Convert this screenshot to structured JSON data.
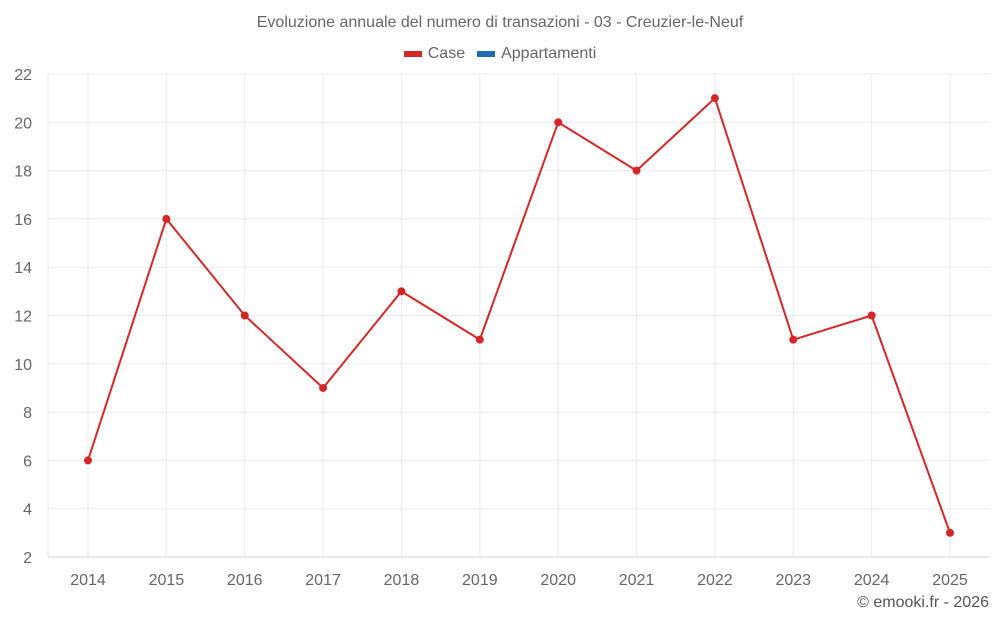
{
  "chart_data": {
    "type": "line",
    "title": "Evoluzione annuale del numero di transazioni - 03 - Creuzier-le-Neuf",
    "xlabel": "",
    "ylabel": "",
    "x": [
      "2014",
      "2015",
      "2016",
      "2017",
      "2018",
      "2019",
      "2020",
      "2021",
      "2022",
      "2023",
      "2024",
      "2025"
    ],
    "series": [
      {
        "name": "Case",
        "color": "#d62728",
        "values": [
          6,
          16,
          12,
          9,
          13,
          11,
          20,
          18,
          21,
          11,
          12,
          3
        ]
      },
      {
        "name": "Appartamenti",
        "color": "#1f6bad",
        "values": []
      }
    ],
    "ylim": [
      2,
      22
    ],
    "yticks": [
      2,
      4,
      6,
      8,
      10,
      12,
      14,
      16,
      18,
      20,
      22
    ],
    "grid": true,
    "legend_position": "top"
  },
  "legend": [
    {
      "label": "Case",
      "color": "#d62728"
    },
    {
      "label": "Appartamenti",
      "color": "#1f6bad"
    }
  ],
  "footer": "© emooki.fr - 2026"
}
